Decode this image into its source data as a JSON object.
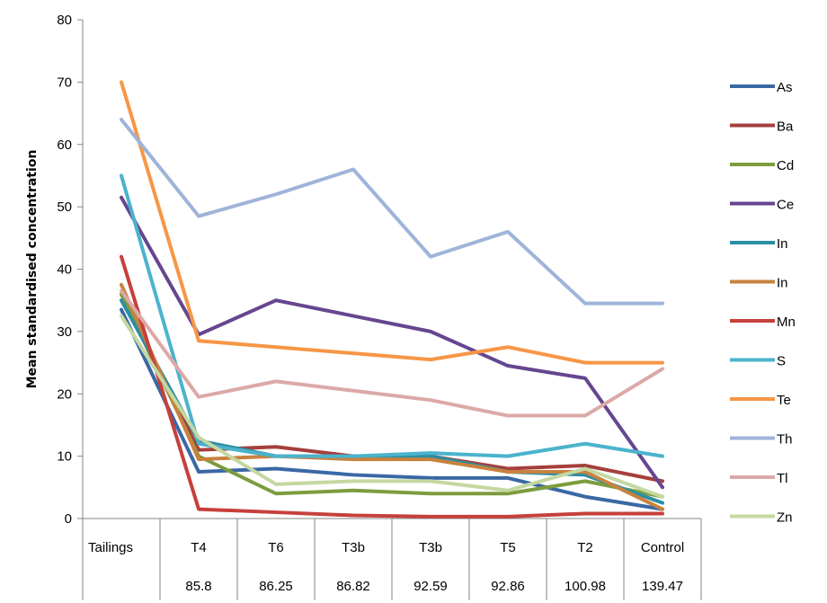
{
  "chart_data": {
    "type": "line",
    "title": "",
    "xlabel": "",
    "ylabel": "Mean standardised concentration",
    "ylim": [
      0,
      80
    ],
    "yticks": [
      0,
      10,
      20,
      30,
      40,
      50,
      60,
      70,
      80
    ],
    "grid": false,
    "legend_position": "right",
    "categories": [
      "Tailings",
      "T4",
      "T6",
      "T3b",
      "T3b",
      "T5",
      "T2",
      "Control"
    ],
    "category_values": [
      "",
      "85.8",
      "86.25",
      "86.82",
      "92.59",
      "92.86",
      "100.98",
      "139.47"
    ],
    "series": [
      {
        "name": "As",
        "color": "#3a68a5",
        "values": [
          33.5,
          7.5,
          8.0,
          7.0,
          6.5,
          6.5,
          3.5,
          1.5
        ]
      },
      {
        "name": "Ba",
        "color": "#a53f3c",
        "values": [
          36.0,
          11.0,
          11.5,
          10.0,
          10.0,
          8.0,
          8.5,
          6.0
        ]
      },
      {
        "name": "Cd",
        "color": "#7d9c3d",
        "values": [
          36.0,
          10.0,
          4.0,
          4.5,
          4.0,
          4.0,
          6.0,
          3.5
        ]
      },
      {
        "name": "Ce",
        "color": "#66468f",
        "values": [
          51.5,
          29.5,
          35.0,
          32.5,
          30.0,
          24.5,
          22.5,
          5.0
        ]
      },
      {
        "name": "In",
        "color": "#2b8ea3",
        "values": [
          35.0,
          12.5,
          10.0,
          10.0,
          10.0,
          7.5,
          7.0,
          2.5
        ]
      },
      {
        "name": "In",
        "color": "#c8823f",
        "values": [
          37.5,
          9.5,
          10.0,
          9.5,
          9.5,
          7.5,
          7.5,
          1.5
        ]
      },
      {
        "name": "Mn",
        "color": "#c6403c",
        "values": [
          42.0,
          1.5,
          1.0,
          0.5,
          0.3,
          0.3,
          0.8,
          0.8
        ]
      },
      {
        "name": "S",
        "color": "#4bb3cc",
        "values": [
          55.0,
          12.0,
          10.0,
          10.0,
          10.5,
          10.0,
          12.0,
          10.0
        ]
      },
      {
        "name": "Te",
        "color": "#f79646",
        "values": [
          70.0,
          28.5,
          27.5,
          26.5,
          25.5,
          27.5,
          25.0,
          25.0
        ]
      },
      {
        "name": "Th",
        "color": "#9fb4d9",
        "values": [
          64.0,
          48.5,
          52.0,
          56.0,
          42.0,
          46.0,
          34.5,
          34.5
        ]
      },
      {
        "name": "Tl",
        "color": "#dba9a8",
        "values": [
          36.5,
          19.5,
          22.0,
          20.5,
          19.0,
          16.5,
          16.5,
          24.0
        ]
      },
      {
        "name": "Zn",
        "color": "#c4d8a1",
        "values": [
          32.5,
          13.0,
          5.5,
          6.0,
          6.0,
          4.5,
          8.0,
          3.5
        ]
      }
    ]
  }
}
